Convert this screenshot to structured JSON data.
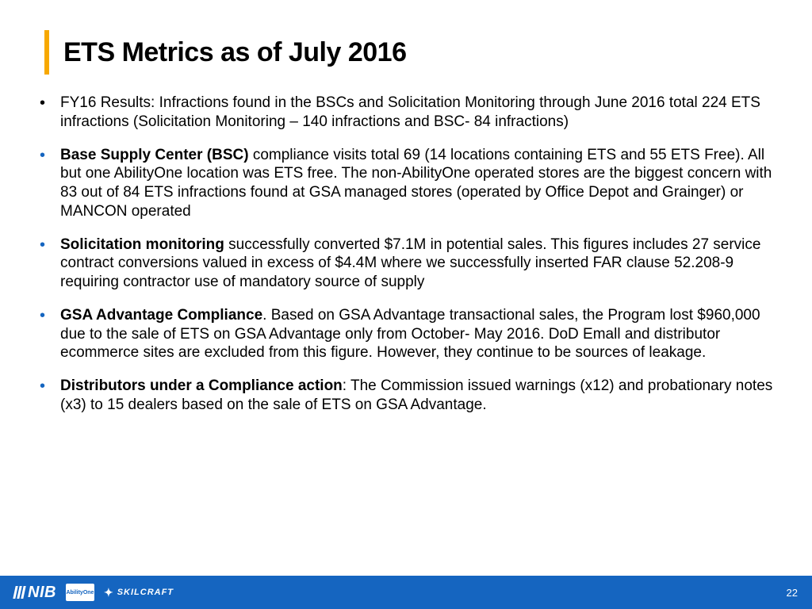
{
  "slide": {
    "title": "ETS Metrics as of July 2016",
    "bullets": [
      {
        "black_bullet": true,
        "lead": "",
        "text": "FY16 Results: Infractions found in the BSCs and Solicitation Monitoring through June 2016 total 224 ETS infractions (Solicitation Monitoring – 140 infractions and BSC- 84 infractions)"
      },
      {
        "black_bullet": false,
        "lead": "Base Supply Center (BSC) ",
        "text": "compliance visits total 69 (14 locations containing ETS and 55 ETS Free).  All but one AbilityOne location was ETS free. The non-AbilityOne operated stores are the biggest concern with 83 out of 84 ETS infractions found at GSA managed stores (operated by Office Depot and Grainger)  or MANCON operated"
      },
      {
        "black_bullet": false,
        "lead": "Solicitation monitoring ",
        "text": "successfully converted $7.1M in potential sales. This figures includes 27 service contract conversions valued in excess of $4.4M where we successfully inserted FAR clause 52.208-9 requiring contractor use of mandatory source of supply"
      },
      {
        "black_bullet": false,
        "lead": "GSA Advantage Compliance",
        "text": ".  Based on GSA Advantage transactional sales, the Program lost $960,000 due to the sale of ETS on GSA Advantage only from October- May 2016. DoD Emall and distributor ecommerce sites are excluded from this figure. However, they continue to be sources of leakage."
      },
      {
        "black_bullet": false,
        "lead": "Distributors under a Compliance action",
        "text": ": The Commission issued warnings (x12) and probationary notes (x3) to 15 dealers based on the sale of ETS on GSA Advantage."
      }
    ]
  },
  "footer": {
    "logos": {
      "nib": "NIB",
      "abilityone": "AbilityOne",
      "skilcraft": "SKILCRAFT"
    },
    "page_number": "22"
  },
  "colors": {
    "accent": "#f7a800",
    "brand_blue": "#1565c0",
    "text": "#000000",
    "background": "#ffffff"
  }
}
